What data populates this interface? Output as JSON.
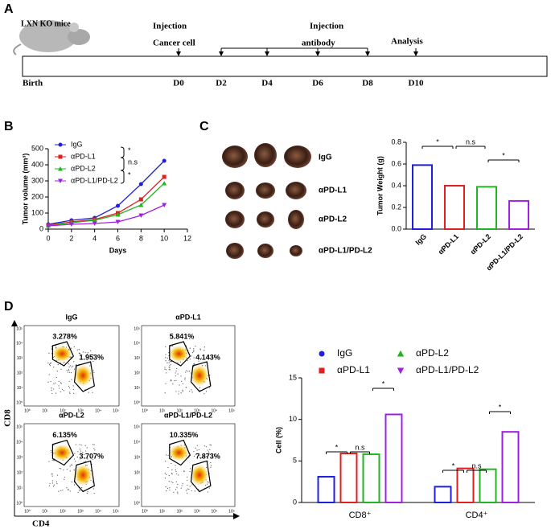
{
  "panel_labels": [
    "A",
    "B",
    "C",
    "D"
  ],
  "timeline": {
    "subject": "LXN KO mice",
    "labels": [
      "Injection",
      "Cancer cell",
      "Injection",
      "antibody",
      "Analysis"
    ],
    "days": [
      "Birth",
      "D0",
      "D2",
      "D4",
      "D6",
      "D8",
      "D10"
    ]
  },
  "photos": {
    "labels": [
      "IgG",
      "αPD-L1",
      "αPD-L2",
      "αPD-L1/PD-L2"
    ]
  },
  "flow": {
    "x_label": "CD4",
    "y_label": "CD8",
    "axis_ticks": [
      "10⁰",
      "10¹",
      "10²",
      "10³",
      "10⁴",
      "10⁵"
    ],
    "panels": [
      {
        "title": "IgG",
        "gates": [
          "3.278%",
          "1.953%"
        ]
      },
      {
        "title": "αPD-L1",
        "gates": [
          "5.841%",
          "4.143%"
        ]
      },
      {
        "title": "αPD-L2",
        "gates": [
          "6.135%",
          "3.707%"
        ]
      },
      {
        "title": "αPD-L1/PD-L2",
        "gates": [
          "10.335%",
          "7.873%"
        ]
      }
    ]
  },
  "chart_data": [
    {
      "type": "line",
      "x_label": "Days",
      "y_label": "Tumor volume (mm³)",
      "x": [
        0,
        2,
        4,
        6,
        8,
        10
      ],
      "series": [
        {
          "name": "IgG",
          "color": "#1f1fe0",
          "marker": "circle",
          "values": [
            30,
            55,
            70,
            145,
            280,
            425
          ]
        },
        {
          "name": "αPD-L1",
          "color": "#e01f1f",
          "marker": "square",
          "values": [
            25,
            45,
            60,
            100,
            185,
            325
          ]
        },
        {
          "name": "αPD-L2",
          "color": "#22b522",
          "marker": "triangle",
          "values": [
            22,
            40,
            55,
            90,
            150,
            285
          ]
        },
        {
          "name": "αPD-L1/PD-L2",
          "color": "#a020e0",
          "marker": "down-triangle",
          "values": [
            20,
            30,
            35,
            45,
            85,
            150
          ]
        }
      ],
      "xlim": [
        0,
        12
      ],
      "xticks": [
        0,
        2,
        4,
        6,
        8,
        10,
        12
      ],
      "ylim": [
        0,
        500
      ],
      "yticks": [
        0,
        100,
        200,
        300,
        400,
        500
      ],
      "annotations": [
        "*",
        "n.s",
        "*"
      ]
    },
    {
      "type": "bar",
      "y_label": "Tumor Weight (g)",
      "categories": [
        "IgG",
        "αPD-L1",
        "αPD-L2",
        "αPD-L1/PD-L2"
      ],
      "values": [
        0.59,
        0.4,
        0.39,
        0.26
      ],
      "colors": [
        "#1f1fe0",
        "#e01f1f",
        "#22b522",
        "#a020e0"
      ],
      "ylim": [
        0,
        0.8
      ],
      "yticks": [
        {
          "value": 0,
          "label": "0.0"
        },
        0.2,
        0.4,
        0.6,
        0.8
      ],
      "annotations": [
        "*",
        "n.s",
        "*"
      ]
    },
    {
      "type": "grouped_bar",
      "y_label": "Cell (%)",
      "categories": [
        "CD8⁺",
        "CD4⁺"
      ],
      "series": [
        {
          "name": "IgG",
          "color": "#1f1fe0",
          "marker": "circle",
          "values": [
            3.1,
            1.9
          ]
        },
        {
          "name": "αPD-L1",
          "color": "#e01f1f",
          "marker": "square",
          "values": [
            5.9,
            4.1
          ]
        },
        {
          "name": "αPD-L2",
          "color": "#22b522",
          "marker": "triangle",
          "values": [
            5.8,
            4.0
          ]
        },
        {
          "name": "αPD-L1/PD-L2",
          "color": "#a020e0",
          "marker": "down-triangle",
          "values": [
            10.6,
            8.5
          ]
        }
      ],
      "ylim": [
        0,
        15
      ],
      "yticks": [
        0,
        5,
        10,
        15
      ],
      "annotations": [
        "*",
        "n.s",
        "*",
        "*",
        "n.s",
        "*"
      ]
    }
  ]
}
